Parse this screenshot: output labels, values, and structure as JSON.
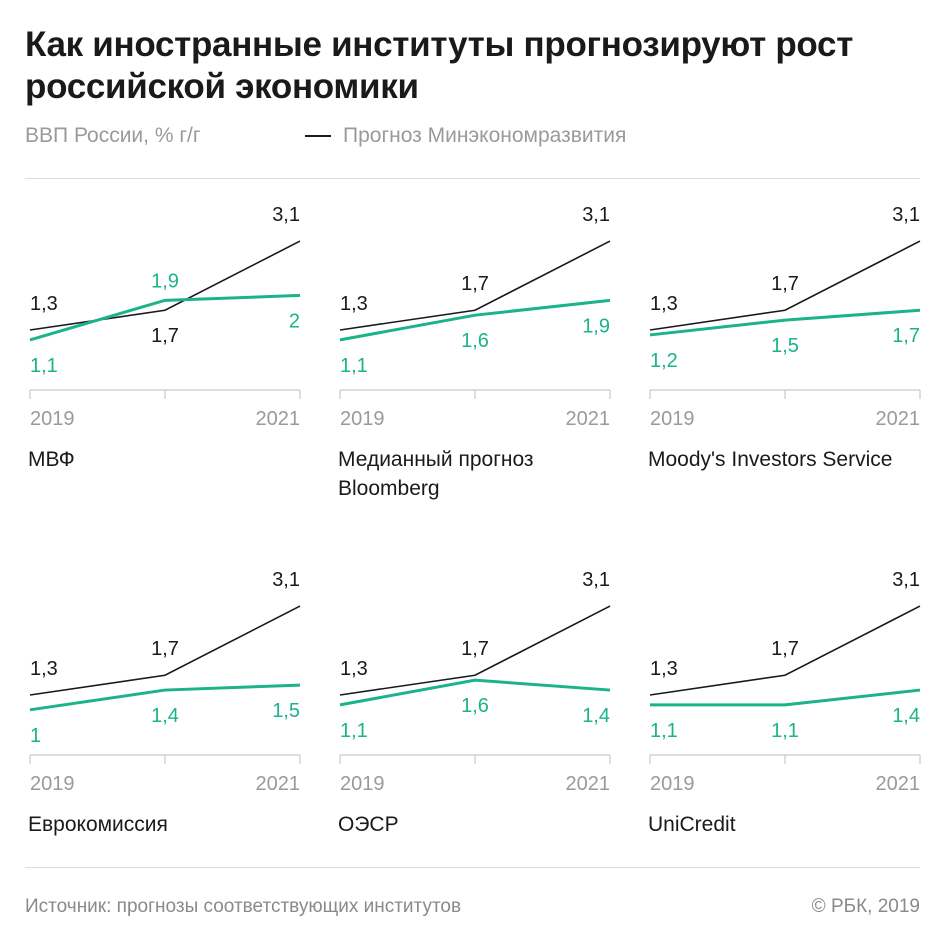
{
  "header": {
    "title": "Как иностранные институты прогнозируют рост российской экономики",
    "subtitle": "ВВП России, % г/г",
    "legend_label": "Прогноз Минэкономразвития"
  },
  "footer": {
    "source": "Источник: прогнозы соответствующих институтов",
    "copyright": "© РБК, 2019"
  },
  "colors": {
    "baseline": "#1a1a1a",
    "forecast": "#1bb38a",
    "axis": "#bdbdbd",
    "tick_text": "#9a9a9a"
  },
  "chart_data": [
    {
      "type": "line",
      "title": "МВФ",
      "x": [
        2019,
        2020,
        2021
      ],
      "x_tick_labels": [
        "2019",
        "2021"
      ],
      "series": [
        {
          "name": "Прогноз Минэкономразвития",
          "values": [
            1.3,
            1.7,
            3.1
          ],
          "labels": [
            "1,3",
            "1,7",
            "3,1"
          ]
        },
        {
          "values": [
            1.1,
            1.9,
            2.0
          ],
          "labels": [
            "1,1",
            "1,9",
            "2"
          ]
        }
      ]
    },
    {
      "type": "line",
      "title": "Медианный прогноз Bloomberg",
      "x": [
        2019,
        2020,
        2021
      ],
      "x_tick_labels": [
        "2019",
        "2021"
      ],
      "series": [
        {
          "name": "Прогноз Минэкономразвития",
          "values": [
            1.3,
            1.7,
            3.1
          ],
          "labels": [
            "1,3",
            "1,7",
            "3,1"
          ]
        },
        {
          "values": [
            1.1,
            1.6,
            1.9
          ],
          "labels": [
            "1,1",
            "1,6",
            "1,9"
          ]
        }
      ]
    },
    {
      "type": "line",
      "title": "Moody's Investors Service",
      "x": [
        2019,
        2020,
        2021
      ],
      "x_tick_labels": [
        "2019",
        "2021"
      ],
      "series": [
        {
          "name": "Прогноз Минэкономразвития",
          "values": [
            1.3,
            1.7,
            3.1
          ],
          "labels": [
            "1,3",
            "1,7",
            "3,1"
          ]
        },
        {
          "values": [
            1.2,
            1.5,
            1.7
          ],
          "labels": [
            "1,2",
            "1,5",
            "1,7"
          ]
        }
      ]
    },
    {
      "type": "line",
      "title": "Еврокомиссия",
      "x": [
        2019,
        2020,
        2021
      ],
      "x_tick_labels": [
        "2019",
        "2021"
      ],
      "series": [
        {
          "name": "Прогноз Минэкономразвития",
          "values": [
            1.3,
            1.7,
            3.1
          ],
          "labels": [
            "1,3",
            "1,7",
            "3,1"
          ]
        },
        {
          "values": [
            1.0,
            1.4,
            1.5
          ],
          "labels": [
            "1",
            "1,4",
            "1,5"
          ]
        }
      ]
    },
    {
      "type": "line",
      "title": "ОЭСР",
      "x": [
        2019,
        2020,
        2021
      ],
      "x_tick_labels": [
        "2019",
        "2021"
      ],
      "series": [
        {
          "name": "Прогноз Минэкономразвития",
          "values": [
            1.3,
            1.7,
            3.1
          ],
          "labels": [
            "1,3",
            "1,7",
            "3,1"
          ]
        },
        {
          "values": [
            1.1,
            1.6,
            1.4
          ],
          "labels": [
            "1,1",
            "1,6",
            "1,4"
          ]
        }
      ]
    },
    {
      "type": "line",
      "title": "UniCredit",
      "x": [
        2019,
        2020,
        2021
      ],
      "x_tick_labels": [
        "2019",
        "2021"
      ],
      "series": [
        {
          "name": "Прогноз Минэкономразвития",
          "values": [
            1.3,
            1.7,
            3.1
          ],
          "labels": [
            "1,3",
            "1,7",
            "3,1"
          ]
        },
        {
          "values": [
            1.1,
            1.1,
            1.4
          ],
          "labels": [
            "1,1",
            "1,1",
            "1,4"
          ]
        }
      ]
    }
  ]
}
